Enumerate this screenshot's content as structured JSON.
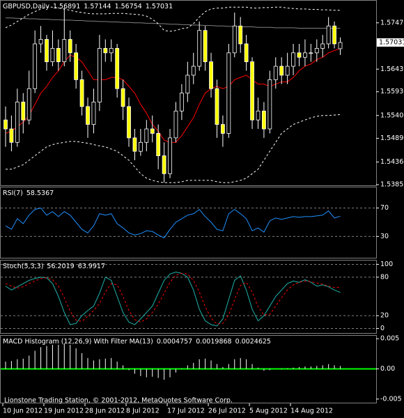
{
  "chart_data": [
    {
      "type": "candlestick",
      "title": "GBPUSD,Daily",
      "categories": [
        "10 Jun 2012",
        null,
        null,
        null,
        null,
        null,
        null,
        "19 Jun 2012",
        null,
        null,
        null,
        null,
        null,
        null,
        "28 Jun 2012",
        null,
        null,
        null,
        null,
        null,
        null,
        "8 Jul 2012",
        null,
        null,
        null,
        null,
        null,
        null,
        "17 Jul 2012",
        null,
        null,
        null,
        null,
        null,
        null,
        "26 Jul 2012",
        null,
        null,
        null,
        null,
        null,
        null,
        "5 Aug 2012",
        null,
        null,
        null,
        null,
        null,
        null,
        "14 Aug 2012",
        null,
        null,
        null,
        null,
        null,
        null,
        null,
        null
      ],
      "open": [
        1.553,
        1.551,
        1.548,
        1.557,
        1.553,
        1.56,
        1.57,
        1.571,
        1.566,
        1.569,
        1.566,
        1.571,
        1.568,
        1.562,
        1.556,
        1.552,
        1.557,
        1.569,
        1.568,
        1.569,
        1.56,
        1.556,
        1.549,
        1.546,
        1.548,
        1.551,
        1.55,
        1.545,
        1.541,
        1.549,
        1.555,
        1.559,
        1.563,
        1.565,
        1.573,
        1.566,
        1.56,
        1.552,
        1.55,
        1.568,
        1.574,
        1.57,
        1.566,
        1.553,
        1.555,
        1.551,
        1.562,
        1.565,
        1.563,
        1.565,
        1.568,
        1.567,
        1.568,
        1.568,
        1.569,
        1.57,
        1.574,
        1.56891
      ],
      "high": [
        1.556,
        1.554,
        1.56,
        1.559,
        1.564,
        1.573,
        1.574,
        1.572,
        1.573,
        1.571,
        1.578,
        1.573,
        1.57,
        1.564,
        1.558,
        1.56,
        1.572,
        1.571,
        1.571,
        1.57,
        1.562,
        1.558,
        1.551,
        1.551,
        1.553,
        1.554,
        1.552,
        1.548,
        1.551,
        1.557,
        1.561,
        1.566,
        1.568,
        1.575,
        1.574,
        1.568,
        1.562,
        1.554,
        1.57,
        1.577,
        1.576,
        1.572,
        1.567,
        1.558,
        1.557,
        1.564,
        1.567,
        1.567,
        1.568,
        1.57,
        1.57,
        1.571,
        1.57,
        1.571,
        1.572,
        1.576,
        1.575,
        1.57144
      ],
      "low": [
        1.547,
        1.546,
        1.547,
        1.55,
        1.552,
        1.559,
        1.568,
        1.564,
        1.565,
        1.564,
        1.565,
        1.566,
        1.56,
        1.554,
        1.549,
        1.55,
        1.555,
        1.566,
        1.566,
        1.558,
        1.553,
        1.547,
        1.544,
        1.545,
        1.546,
        1.548,
        1.542,
        1.539,
        1.54,
        1.548,
        1.553,
        1.557,
        1.561,
        1.564,
        1.564,
        1.558,
        1.549,
        1.547,
        1.549,
        1.567,
        1.568,
        1.564,
        1.551,
        1.551,
        1.549,
        1.55,
        1.56,
        1.561,
        1.561,
        1.563,
        1.565,
        1.565,
        1.566,
        1.566,
        1.567,
        1.569,
        1.569,
        1.56754
      ],
      "close": [
        1.551,
        1.548,
        1.557,
        1.553,
        1.56,
        1.57,
        1.571,
        1.566,
        1.569,
        1.566,
        1.571,
        1.568,
        1.562,
        1.556,
        1.552,
        1.557,
        1.569,
        1.568,
        1.569,
        1.56,
        1.556,
        1.549,
        1.546,
        1.548,
        1.551,
        1.55,
        1.545,
        1.541,
        1.549,
        1.555,
        1.559,
        1.563,
        1.565,
        1.573,
        1.566,
        1.56,
        1.552,
        1.55,
        1.568,
        1.574,
        1.57,
        1.566,
        1.553,
        1.555,
        1.551,
        1.562,
        1.565,
        1.563,
        1.565,
        1.568,
        1.567,
        1.568,
        1.568,
        1.569,
        1.57,
        1.574,
        1.57,
        1.57031
      ],
      "candle_colors": {
        "up": "#000000",
        "down": "#ffff00",
        "wick": "#ffffff"
      },
      "lines": [
        {
          "color": "#ff0000",
          "dashed": false,
          "values": [
            1.55,
            1.5505,
            1.5515,
            1.5525,
            1.554,
            1.5565,
            1.559,
            1.5605,
            1.5625,
            1.564,
            1.566,
            1.5675,
            1.567,
            1.566,
            1.564,
            1.562,
            1.562,
            1.562,
            1.5625,
            1.5625,
            1.562,
            1.5605,
            1.559,
            1.5565,
            1.5545,
            1.552,
            1.5505,
            1.5485,
            1.548,
            1.548,
            1.5495,
            1.5515,
            1.5535,
            1.5565,
            1.559,
            1.56,
            1.5605,
            1.56,
            1.5605,
            1.562,
            1.5625,
            1.563,
            1.562,
            1.561,
            1.561,
            1.5605,
            1.561,
            1.5615,
            1.5615,
            1.5625,
            1.564,
            1.565,
            1.5655,
            1.5665,
            1.567,
            1.568,
            1.5685,
            1.569
          ]
        },
        {
          "color": "#808080",
          "dashed": false,
          "values": [
            1.5758,
            1.5758,
            1.5757,
            1.5757,
            1.5756,
            1.5756,
            1.5755,
            1.5755,
            1.5754,
            1.5754,
            1.5753,
            1.5753,
            1.5752,
            1.5752,
            1.5751,
            1.5751,
            1.575,
            1.575,
            1.5749,
            1.5749,
            1.5748,
            1.5748,
            1.5747,
            1.5747,
            1.5746,
            1.5746,
            1.5745,
            1.5745,
            1.5744,
            1.5744,
            1.5743,
            1.5743,
            1.5742,
            1.5742,
            1.5741,
            1.5741,
            1.574,
            1.574,
            1.5739,
            1.5739,
            1.5738,
            1.5738,
            1.5738,
            1.5737,
            1.5737,
            1.5737,
            1.5736,
            1.5736,
            1.5736,
            1.5736,
            1.5735,
            1.5735,
            1.5735,
            1.5735,
            1.5735,
            1.5735,
            1.5735,
            1.5735
          ]
        },
        {
          "color": "#ffffff",
          "dashed": true,
          "values": [
            1.5736,
            1.5742,
            1.575,
            1.5758,
            1.5766,
            1.5772,
            1.5778,
            1.5782,
            1.5782,
            1.578,
            1.5778,
            1.5775,
            1.5772,
            1.577,
            1.5768,
            1.5767,
            1.5767,
            1.5767,
            1.5768,
            1.5768,
            1.5768,
            1.5767,
            1.5766,
            1.5765,
            1.5762,
            1.5755,
            1.5745,
            1.573,
            1.5728,
            1.573,
            1.5734,
            1.5736,
            1.5745,
            1.576,
            1.5772,
            1.5778,
            1.578,
            1.578,
            1.5782,
            1.5782,
            1.5782,
            1.5782,
            1.578,
            1.578,
            1.5781,
            1.5781,
            1.5782,
            1.5782,
            1.578,
            1.5779,
            1.5778,
            1.5778,
            1.5777,
            1.5777,
            1.5776,
            1.5776,
            1.5775,
            1.5775
          ]
        },
        {
          "color": "#ffffff",
          "dashed": true,
          "values": [
            1.542,
            1.542,
            1.5425,
            1.543,
            1.544,
            1.545,
            1.546,
            1.547,
            1.5475,
            1.5478,
            1.548,
            1.5482,
            1.5482,
            1.548,
            1.5478,
            1.5475,
            1.5472,
            1.547,
            1.5465,
            1.546,
            1.545,
            1.544,
            1.5425,
            1.541,
            1.54,
            1.5395,
            1.5392,
            1.539,
            1.539,
            1.539,
            1.5392,
            1.5395,
            1.5395,
            1.5395,
            1.5395,
            1.5395,
            1.5392,
            1.539,
            1.539,
            1.5392,
            1.5395,
            1.54,
            1.541,
            1.542,
            1.544,
            1.546,
            1.548,
            1.55,
            1.551,
            1.552,
            1.5525,
            1.553,
            1.5535,
            1.5538,
            1.554,
            1.554,
            1.5541,
            1.5542
          ]
        }
      ],
      "ylim": [
        1.5384,
        1.5798
      ],
      "yticks": [
        {
          "value": 1.5747,
          "label": "1.57470"
        },
        1.56435,
        {
          "value": 1.5593,
          "label": "1.55930"
        },
        {
          "value": 1.554,
          "label": "1.55400"
        },
        {
          "value": 1.5489,
          "label": "1.54890"
        },
        {
          "value": 1.5436,
          "label": "1.54360"
        },
        1.53855
      ]
    },
    {
      "type": "line",
      "title": "RSI(7)",
      "series": [
        {
          "color": "#1e90ff",
          "values": [
            45,
            40,
            55,
            48,
            60,
            68,
            70,
            60,
            65,
            58,
            65,
            60,
            50,
            40,
            35,
            45,
            62,
            60,
            62,
            48,
            42,
            35,
            32,
            34,
            38,
            37,
            32,
            28,
            40,
            50,
            55,
            60,
            62,
            68,
            58,
            50,
            40,
            38,
            62,
            68,
            62,
            55,
            38,
            42,
            36,
            52,
            56,
            54,
            56,
            58,
            57,
            58,
            58,
            59,
            60,
            66,
            56,
            58.5367
          ],
          "dashed": false
        }
      ],
      "ylim": [
        0,
        100
      ],
      "yticks": [
        30,
        70
      ],
      "levels": true
    },
    {
      "type": "line",
      "title": "Stoch(5,3,3)",
      "series": [
        {
          "color": "#20b2aa",
          "dashed": false,
          "values": [
            66,
            60,
            65,
            70,
            75,
            78,
            80,
            79,
            70,
            50,
            25,
            6,
            8,
            20,
            28,
            35,
            55,
            80,
            75,
            50,
            25,
            10,
            6,
            15,
            25,
            35,
            55,
            75,
            85,
            88,
            86,
            80,
            60,
            30,
            12,
            6,
            4,
            15,
            45,
            75,
            82,
            60,
            30,
            12,
            20,
            35,
            50,
            60,
            70,
            74,
            72,
            76,
            72,
            66,
            68,
            65,
            60,
            56.2019
          ]
        },
        {
          "color": "#ff0000",
          "dashed": true,
          "values": [
            70,
            66,
            63,
            65,
            70,
            74,
            78,
            79,
            76,
            66,
            48,
            27,
            13,
            11,
            19,
            28,
            39,
            57,
            70,
            68,
            50,
            28,
            14,
            10,
            15,
            25,
            38,
            55,
            72,
            83,
            86,
            85,
            75,
            57,
            34,
            16,
            7,
            8,
            21,
            45,
            67,
            72,
            57,
            34,
            21,
            22,
            35,
            48,
            60,
            68,
            72,
            74,
            73,
            71,
            69,
            66,
            64,
            63.9917
          ]
        }
      ],
      "ylim": [
        -7,
        107
      ],
      "yticks": [
        0,
        20,
        80,
        100
      ],
      "levels": true
    },
    {
      "type": "histogram",
      "title": "MACD Histogram (12,26,9) With Filter MA(13)",
      "values": [
        0.0012,
        0.0013,
        0.0016,
        0.0017,
        0.0022,
        0.003,
        0.0036,
        0.0038,
        0.004,
        0.004,
        0.0042,
        0.004,
        0.0034,
        0.0026,
        0.0018,
        0.0014,
        0.0016,
        0.0017,
        0.0018,
        0.0012,
        0.0006,
        -0.0002,
        -0.0008,
        -0.0012,
        -0.0014,
        -0.0013,
        -0.0015,
        -0.0018,
        -0.0014,
        -0.0006,
        0.0001,
        0.0006,
        0.001,
        0.0016,
        0.0017,
        0.0014,
        0.0008,
        0.0003,
        0.0008,
        0.0016,
        0.0018,
        0.0016,
        0.0008,
        0.0002,
        -0.0003,
        -0.0002,
        0.0,
        -0.0001,
        0.0001,
        0.0002,
        0.0003,
        0.0004,
        0.0004,
        0.0005,
        0.0006,
        0.0008,
        0.0006,
        0.0004757
      ],
      "readout": [
        0.0019868,
        0.0024625
      ],
      "color": "#ffffff",
      "zero_line_color": "#00ff00",
      "ylim": [
        -0.0056,
        0.0056
      ],
      "yticks": [
        0.005,
        {
          "value": 0,
          "label": "0.00"
        },
        -0.005
      ]
    }
  ],
  "footer": "Lionstone Trading Station, © 2001-2012, MetaQuotes Software Corp."
}
